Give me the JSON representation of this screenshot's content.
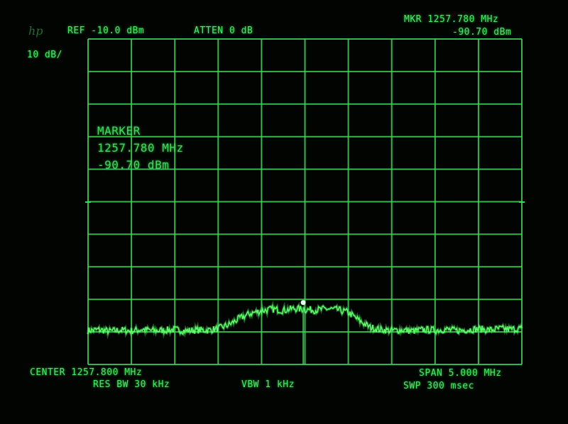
{
  "header": {
    "logo": "hp",
    "ref": "REF -10.0 dBm",
    "atten": "ATTEN 0 dB",
    "scale": "10 dB/",
    "mkr_freq": "MKR 1257.780 MHz",
    "mkr_level": "-90.70 dBm"
  },
  "marker_box": {
    "title": "MARKER",
    "freq": "1257.780 MHz",
    "level": "-90.70 dBm"
  },
  "footer": {
    "center": "CENTER 1257.800 MHz",
    "res_bw": "RES BW 30 kHz",
    "vbw": "VBW 1 kHz",
    "span": "SPAN 5.000 MHz",
    "swp": "SWP 300 msec"
  },
  "colors": {
    "trace": "#5cff6a",
    "grid": "#3fd65a",
    "marker": "#e8ffe8"
  },
  "chart_data": {
    "type": "line",
    "title": "",
    "xlabel": "",
    "ylabel": "",
    "x_unit": "MHz",
    "y_unit": "dBm",
    "xlim": [
      1255.3,
      1260.3
    ],
    "ylim": [
      -110,
      -10
    ],
    "grid": true,
    "divisions": {
      "x": 10,
      "y": 10
    },
    "marker": {
      "x": 1257.78,
      "y": -90.7
    },
    "series": [
      {
        "x": [
          1255.3,
          1255.425,
          1255.55,
          1255.675,
          1255.8,
          1255.925,
          1256.05,
          1256.175,
          1256.3,
          1256.425,
          1256.55,
          1256.675,
          1256.8,
          1256.925,
          1257.05,
          1257.175,
          1257.3,
          1257.425,
          1257.55,
          1257.675,
          1257.8,
          1257.925,
          1258.05,
          1258.175,
          1258.3,
          1258.425,
          1258.55,
          1258.675,
          1258.8,
          1258.925,
          1259.05,
          1259.175,
          1259.3,
          1259.425,
          1259.55,
          1259.675,
          1259.8,
          1259.925,
          1260.05,
          1260.175,
          1260.3
        ],
        "y": [
          -99.6,
          -99.3,
          -99.8,
          -99.4,
          -99.7,
          -99.2,
          -99.6,
          -99.5,
          -99.3,
          -99.7,
          -99.4,
          -99.5,
          -99.0,
          -97.8,
          -95.8,
          -94.3,
          -93.5,
          -93.0,
          -93.4,
          -92.8,
          -93.1,
          -93.3,
          -92.9,
          -93.2,
          -94.0,
          -96.5,
          -98.6,
          -99.3,
          -99.6,
          -99.4,
          -99.7,
          -99.3,
          -99.5,
          -99.2,
          -99.6,
          -99.3,
          -99.1,
          -99.4,
          -99.0,
          -99.2,
          -98.9
        ]
      }
    ]
  }
}
